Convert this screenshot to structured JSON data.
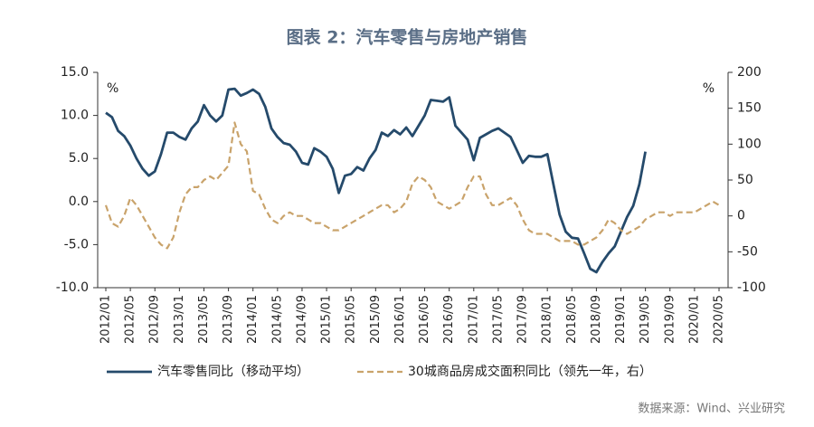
{
  "chart_data": {
    "type": "line",
    "title": "图表 2：汽车零售与房地产销售",
    "y_unit": "%",
    "y2_unit": "%",
    "source": "数据来源：Wind、兴业研究",
    "categories": [
      "2012/01",
      null,
      null,
      null,
      "2012/05",
      null,
      null,
      null,
      "2012/09",
      null,
      null,
      null,
      "2013/01",
      null,
      null,
      null,
      "2013/05",
      null,
      null,
      null,
      "2013/09",
      null,
      null,
      null,
      "2014/01",
      null,
      null,
      null,
      "2014/05",
      null,
      null,
      null,
      "2014/09",
      null,
      null,
      null,
      "2015/01",
      null,
      null,
      null,
      "2015/05",
      null,
      null,
      null,
      "2015/09",
      null,
      null,
      null,
      "2016/01",
      null,
      null,
      null,
      "2016/05",
      null,
      null,
      null,
      "2016/09",
      null,
      null,
      null,
      "2017/01",
      null,
      null,
      null,
      "2017/05",
      null,
      null,
      null,
      "2017/09",
      null,
      null,
      null,
      "2018/01",
      null,
      null,
      null,
      "2018/05",
      null,
      null,
      null,
      "2018/09",
      null,
      null,
      null,
      "2019/01",
      null,
      null,
      null,
      "2019/05",
      null,
      null,
      null,
      "2019/09",
      null,
      null,
      null,
      "2020/01",
      null,
      null,
      null,
      "2020/05"
    ],
    "series": [
      {
        "name": "汽车零售同比（移动平均）",
        "color": "#254a6b",
        "dash": false,
        "axis": "y",
        "values": [
          10.3,
          9.8,
          8.2,
          7.6,
          6.5,
          5.0,
          3.8,
          3.0,
          3.5,
          5.5,
          8.0,
          8.0,
          7.5,
          7.2,
          8.5,
          9.3,
          11.2,
          10.0,
          9.3,
          10.0,
          13.0,
          13.1,
          12.3,
          12.6,
          13.0,
          12.5,
          11.0,
          8.5,
          7.5,
          6.8,
          6.6,
          5.8,
          4.5,
          4.3,
          6.2,
          5.8,
          5.2,
          3.8,
          1.0,
          3.0,
          3.2,
          4.0,
          3.6,
          5.0,
          6.0,
          8.0,
          7.6,
          8.3,
          7.8,
          8.6,
          7.6,
          8.8,
          10.0,
          11.8,
          11.7,
          11.6,
          12.1,
          8.8,
          8.0,
          7.2,
          4.8,
          7.4,
          7.8,
          8.2,
          8.5,
          8.0,
          7.5,
          6.0,
          4.5,
          5.3,
          5.2,
          5.2,
          5.5,
          2.0,
          -1.5,
          -3.5,
          -4.2,
          -4.3,
          -6.0,
          -7.8,
          -8.2,
          -7.0,
          -6.0,
          -5.2,
          -3.5,
          -1.8,
          -0.5,
          2.0,
          5.8,
          null,
          null,
          null,
          null,
          null,
          null,
          null,
          null,
          null,
          null,
          null,
          null
        ]
      },
      {
        "name": "30城商品房成交面积同比（领先一年，右）",
        "color": "#c9a36b",
        "dash": true,
        "axis": "y2",
        "values": [
          15,
          -10,
          -15,
          0,
          25,
          15,
          0,
          -15,
          -30,
          -40,
          -45,
          -30,
          5,
          30,
          40,
          40,
          50,
          55,
          50,
          60,
          70,
          130,
          100,
          90,
          35,
          30,
          10,
          -5,
          -10,
          0,
          5,
          0,
          0,
          -5,
          -10,
          -10,
          -15,
          -20,
          -20,
          -15,
          -10,
          -5,
          0,
          5,
          10,
          15,
          15,
          5,
          10,
          20,
          45,
          55,
          50,
          40,
          20,
          15,
          10,
          15,
          20,
          40,
          55,
          55,
          30,
          15,
          15,
          20,
          25,
          15,
          -5,
          -20,
          -25,
          -25,
          -25,
          -30,
          -35,
          -35,
          -35,
          -40,
          -40,
          -35,
          -30,
          -20,
          -5,
          -10,
          -20,
          -25,
          -20,
          -15,
          -5,
          0,
          5,
          5,
          0,
          5,
          5,
          5,
          5,
          10,
          15,
          20,
          15
        ]
      }
    ],
    "ylim": [
      -10,
      15
    ],
    "yticks": [
      {
        "value": -10,
        "label": "-10.0"
      },
      {
        "value": -5,
        "label": "-5.0"
      },
      {
        "value": 0,
        "label": "0.0"
      },
      {
        "value": 5,
        "label": "5.0"
      },
      {
        "value": 10,
        "label": "10.0"
      },
      {
        "value": 15,
        "label": "15.0"
      }
    ],
    "y2lim": [
      -100,
      200
    ],
    "y2ticks": [
      -100,
      -50,
      0,
      50,
      100,
      150,
      200
    ],
    "grid": false
  }
}
